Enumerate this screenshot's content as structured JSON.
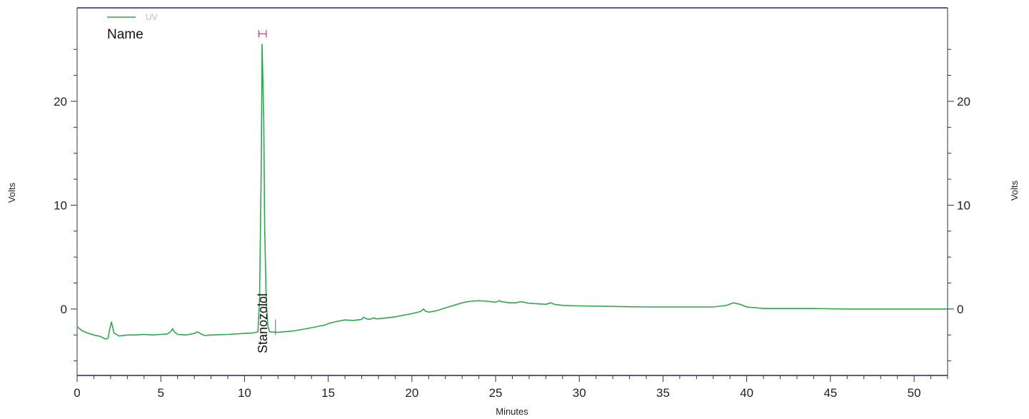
{
  "chart_data": {
    "type": "line",
    "xlabel": "Minutes",
    "ylabel_left": "Volts",
    "ylabel_right": "Volts",
    "xlim": [
      0,
      52
    ],
    "ylim": [
      -6.4,
      29
    ],
    "x_ticks": [
      0,
      5,
      10,
      15,
      20,
      25,
      30,
      35,
      40,
      45,
      50
    ],
    "y_ticks": [
      0,
      10,
      20
    ],
    "legend": {
      "title": "Name",
      "entries": [
        "UV"
      ],
      "placement": "top-left"
    },
    "colors": {
      "series": "#2ea84f",
      "marker": "#d6306f",
      "frame": "#5c5c8a"
    },
    "series": [
      {
        "name": "UV",
        "x": [
          0,
          0.3,
          0.6,
          1.0,
          1.4,
          1.7,
          1.85,
          1.95,
          2.05,
          2.2,
          2.5,
          3,
          3.5,
          4,
          4.5,
          5,
          5.4,
          5.6,
          5.7,
          5.8,
          6.0,
          6.5,
          7.0,
          7.2,
          7.35,
          7.6,
          8,
          9,
          10,
          10.5,
          10.8,
          10.9,
          11.0,
          11.05,
          11.15,
          11.2,
          11.3,
          11.4,
          11.5,
          12,
          13,
          14,
          14.8,
          15,
          15.5,
          16,
          16.5,
          17,
          17.1,
          17.3,
          17.5,
          17.7,
          17.9,
          18.5,
          19,
          20,
          20.5,
          20.7,
          20.8,
          21.0,
          21.5,
          22,
          22.5,
          23,
          23.5,
          24,
          24.5,
          25,
          25.2,
          25.4,
          25.8,
          26.2,
          26.5,
          26.7,
          27,
          27.5,
          28,
          28.3,
          28.5,
          29,
          30,
          32,
          34,
          36,
          38,
          38.8,
          39.2,
          39.6,
          40,
          41,
          42,
          44,
          46,
          48,
          50,
          52
        ],
        "y": [
          -1.7,
          -2.1,
          -2.3,
          -2.5,
          -2.65,
          -2.9,
          -2.8,
          -1.9,
          -1.25,
          -2.3,
          -2.6,
          -2.5,
          -2.5,
          -2.45,
          -2.5,
          -2.45,
          -2.4,
          -2.15,
          -1.9,
          -2.2,
          -2.45,
          -2.5,
          -2.35,
          -2.2,
          -2.35,
          -2.55,
          -2.5,
          -2.45,
          -2.35,
          -2.3,
          -2.2,
          1.0,
          14.0,
          25.5,
          18.0,
          8.0,
          0.5,
          -1.7,
          -2.2,
          -2.25,
          -2.1,
          -1.8,
          -1.55,
          -1.4,
          -1.2,
          -1.05,
          -1.1,
          -1.0,
          -0.8,
          -0.95,
          -1.0,
          -0.85,
          -0.95,
          -0.85,
          -0.75,
          -0.45,
          -0.25,
          0.0,
          -0.2,
          -0.3,
          -0.15,
          0.1,
          0.35,
          0.6,
          0.75,
          0.8,
          0.75,
          0.65,
          0.8,
          0.7,
          0.6,
          0.6,
          0.7,
          0.65,
          0.55,
          0.5,
          0.45,
          0.6,
          0.45,
          0.35,
          0.3,
          0.25,
          0.2,
          0.2,
          0.2,
          0.35,
          0.6,
          0.45,
          0.2,
          0.05,
          0.05,
          0.05,
          0.0,
          0.0,
          0.0,
          0.0
        ]
      }
    ],
    "annotations": [
      {
        "text": "Stanozolol",
        "x": 11.1,
        "orientation": "vertical"
      }
    ]
  }
}
